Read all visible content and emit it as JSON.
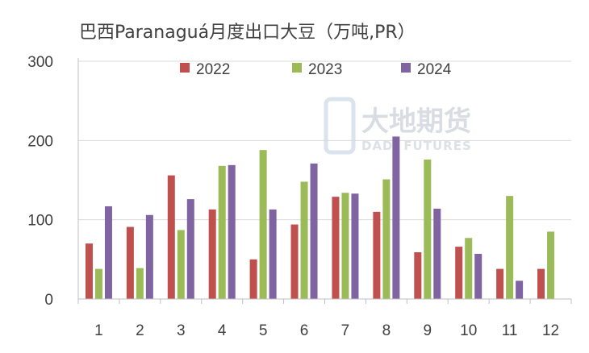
{
  "chart_data": {
    "type": "bar",
    "title": "巴西Paranaguá月度出口大豆（万吨,PR）",
    "categories": [
      "1",
      "2",
      "3",
      "4",
      "5",
      "6",
      "7",
      "8",
      "9",
      "10",
      "11",
      "12"
    ],
    "series": [
      {
        "name": "2022",
        "color": "#c0504d",
        "values": [
          70,
          91,
          156,
          113,
          50,
          94,
          129,
          110,
          59,
          66,
          38,
          38
        ]
      },
      {
        "name": "2023",
        "color": "#9bbb59",
        "values": [
          38,
          39,
          87,
          168,
          188,
          148,
          134,
          151,
          176,
          77,
          130,
          85
        ]
      },
      {
        "name": "2024",
        "color": "#8064a2",
        "values": [
          117,
          106,
          126,
          169,
          113,
          171,
          133,
          205,
          114,
          57,
          23,
          null
        ]
      }
    ],
    "yticks": [
      0,
      100,
      200,
      300
    ],
    "ylim": [
      0,
      300
    ],
    "grid": true,
    "legend": "top-center"
  },
  "watermark": {
    "cn": "大地期货",
    "en": "DADI FUTURES"
  }
}
